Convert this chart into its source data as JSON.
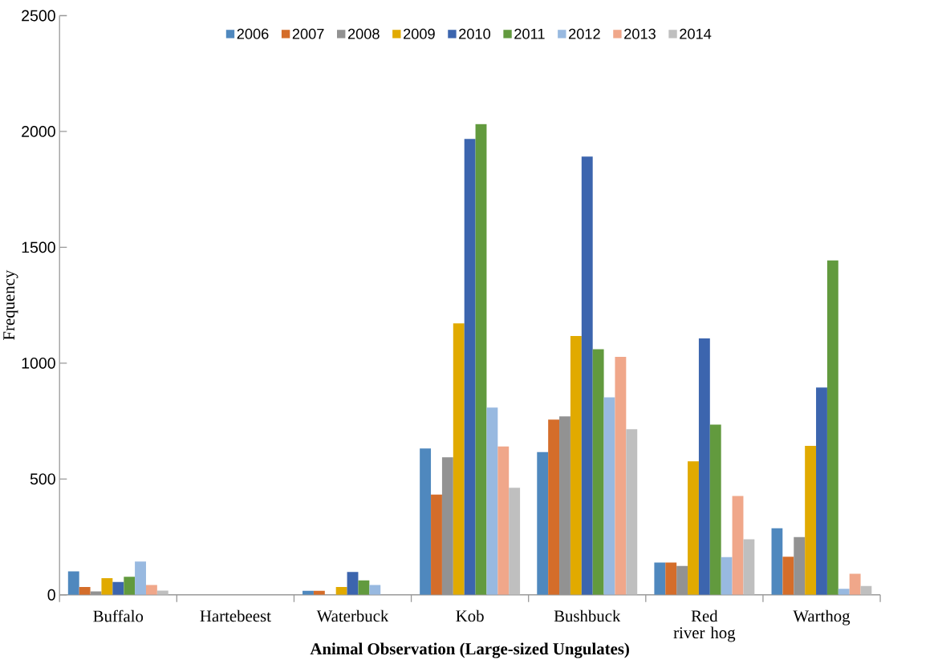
{
  "chart_data": {
    "type": "bar",
    "xlabel": "Animal Observation (Large-sized Ungulates)",
    "ylabel": "Frequency",
    "categories": [
      "Buffalo",
      "Hartebeest",
      "Waterbuck",
      "Kob",
      "Bushbuck",
      "Red river hog",
      "Warthog"
    ],
    "series": [
      {
        "name": "2006",
        "color": "#4f88be",
        "values": [
          101,
          0,
          17,
          632,
          616,
          139,
          287
        ]
      },
      {
        "name": "2007",
        "color": "#d46d2a",
        "values": [
          34,
          0,
          17,
          433,
          756,
          139,
          164
        ]
      },
      {
        "name": "2008",
        "color": "#929292",
        "values": [
          15,
          0,
          null,
          594,
          770,
          125,
          249
        ]
      },
      {
        "name": "2009",
        "color": "#e1aa00",
        "values": [
          72,
          0,
          34,
          1172,
          1117,
          576,
          643
        ]
      },
      {
        "name": "2010",
        "color": "#3c65ae",
        "values": [
          55,
          null,
          99,
          1968,
          1892,
          1107,
          895
        ]
      },
      {
        "name": "2011",
        "color": "#629a3e",
        "values": [
          78,
          0,
          62,
          2032,
          1060,
          735,
          1443
        ]
      },
      {
        "name": "2012",
        "color": "#98b9e0",
        "values": [
          144,
          0,
          42,
          808,
          852,
          163,
          26
        ]
      },
      {
        "name": "2013",
        "color": "#f0a78a",
        "values": [
          42,
          0,
          null,
          640,
          1027,
          427,
          91
        ]
      },
      {
        "name": "2014",
        "color": "#bfbfbf",
        "values": [
          18,
          0,
          null,
          462,
          715,
          240,
          38
        ]
      }
    ],
    "ylim": [
      0,
      2500
    ],
    "yticks": [
      0,
      500,
      1000,
      1500,
      2000,
      2500
    ],
    "grid": false,
    "legend": "top"
  }
}
